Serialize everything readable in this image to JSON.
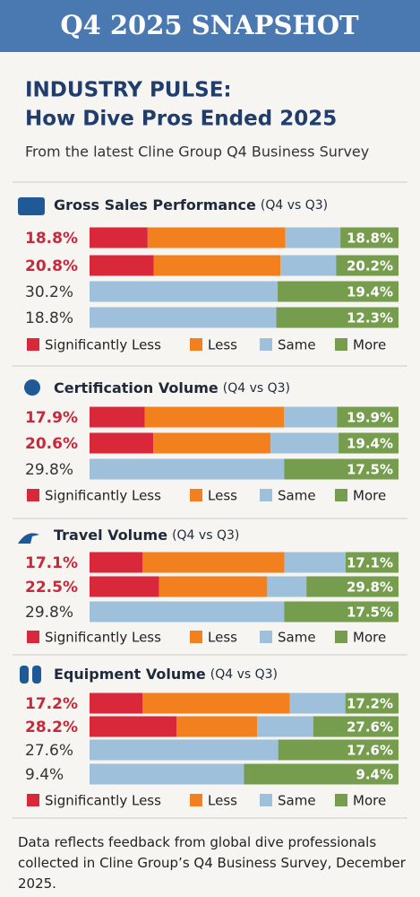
{
  "header": {
    "title": "Q4 2025 SNAPSHOT",
    "heading": [
      "INDUSTRY PULSE:",
      "How Dive Pros Ended 2025"
    ],
    "subtitle": "From the latest Cline Group Q4 Business Survey"
  },
  "chart_data": [
    {
      "type": "bar",
      "orientation": "horizontal",
      "stacked": true,
      "title": "Gross Sales Performance",
      "subtitle": "(Q4 vs Q3)",
      "categories": [
        null,
        null,
        null,
        null
      ],
      "series": [
        {
          "name": "Significantly Less",
          "color": "#d8283a",
          "values": [
            18.8,
            20.8,
            null,
            null
          ],
          "value_labels": [
            "18.8%",
            "20.8%",
            null,
            null
          ]
        },
        {
          "name": "Less",
          "color": "#f2801e",
          "values": [
            44.6,
            41,
            null,
            null
          ],
          "value_labels": [
            null,
            null,
            null,
            null
          ]
        },
        {
          "name": "Same",
          "color": "#9fc0da",
          "values": [
            17.8,
            18,
            30.2,
            18.8
          ],
          "value_labels": [
            null,
            null,
            "30.2%",
            "18.8%"
          ]
        },
        {
          "name": "More",
          "color": "#769c4e",
          "values": [
            18.8,
            20.2,
            19.4,
            12.3
          ],
          "value_labels": [
            "18.8%",
            "20.2%",
            "19.4%",
            "12.3%"
          ]
        }
      ]
    },
    {
      "type": "bar",
      "orientation": "horizontal",
      "stacked": true,
      "title": "Certification Volume",
      "subtitle": "(Q4 vs Q3)",
      "categories": [
        null,
        null,
        null
      ],
      "series": [
        {
          "name": "Significantly Less",
          "color": "#d8283a",
          "values": [
            17.9,
            20.6,
            null
          ],
          "value_labels": [
            "17.9%",
            "20.6%",
            null
          ]
        },
        {
          "name": "Less",
          "color": "#f2801e",
          "values": [
            45,
            38,
            null
          ],
          "value_labels": [
            null,
            null,
            null
          ]
        },
        {
          "name": "Same",
          "color": "#9fc0da",
          "values": [
            17.2,
            22,
            29.8
          ],
          "value_labels": [
            null,
            null,
            "29.8%"
          ]
        },
        {
          "name": "More",
          "color": "#769c4e",
          "values": [
            19.9,
            19.4,
            17.5
          ],
          "value_labels": [
            "19.9%",
            "19.4%",
            "17.5%"
          ]
        }
      ]
    },
    {
      "type": "bar",
      "orientation": "horizontal",
      "stacked": true,
      "title": "Travel Volume",
      "subtitle": "(Q4 vs Q3)",
      "categories": [
        null,
        null,
        null
      ],
      "series": [
        {
          "name": "Significantly Less",
          "color": "#d8283a",
          "values": [
            17.1,
            22.5,
            null
          ],
          "value_labels": [
            "17.1%",
            "22.5%",
            null
          ]
        },
        {
          "name": "Less",
          "color": "#f2801e",
          "values": [
            46,
            35,
            null
          ],
          "value_labels": [
            null,
            null,
            null
          ]
        },
        {
          "name": "Same",
          "color": "#9fc0da",
          "values": [
            19.8,
            12.7,
            29.8
          ],
          "value_labels": [
            null,
            null,
            "29.8%"
          ]
        },
        {
          "name": "More",
          "color": "#769c4e",
          "values": [
            17.1,
            29.8,
            17.5
          ],
          "value_labels": [
            "17.1%",
            "29.8%",
            "17.5%"
          ]
        }
      ]
    },
    {
      "type": "bar",
      "orientation": "horizontal",
      "stacked": true,
      "title": "Equipment Volume",
      "subtitle": "(Q4 vs Q3)",
      "categories": [
        null,
        null,
        null,
        null
      ],
      "series": [
        {
          "name": "Significantly Less",
          "color": "#d8283a",
          "values": [
            17.2,
            28.2,
            null,
            null
          ],
          "value_labels": [
            "17.2%",
            "28.2%",
            null,
            null
          ]
        },
        {
          "name": "Less",
          "color": "#f2801e",
          "values": [
            47.6,
            26,
            null,
            null
          ],
          "value_labels": [
            null,
            null,
            null,
            null
          ]
        },
        {
          "name": "Same",
          "color": "#9fc0da",
          "values": [
            18,
            18.2,
            27.6,
            9.4
          ],
          "value_labels": [
            null,
            null,
            "27.6%",
            "9.4%"
          ]
        },
        {
          "name": "More",
          "color": "#769c4e",
          "values": [
            17.2,
            27.6,
            17.6,
            9.4
          ],
          "value_labels": [
            "17.2%",
            "27.6%",
            "17.6%",
            "9.4%"
          ]
        }
      ]
    }
  ],
  "footer": "Data reflects feedback from global dive professionals collected in Cline Group’s Q4 Business Survey, December 2025."
}
